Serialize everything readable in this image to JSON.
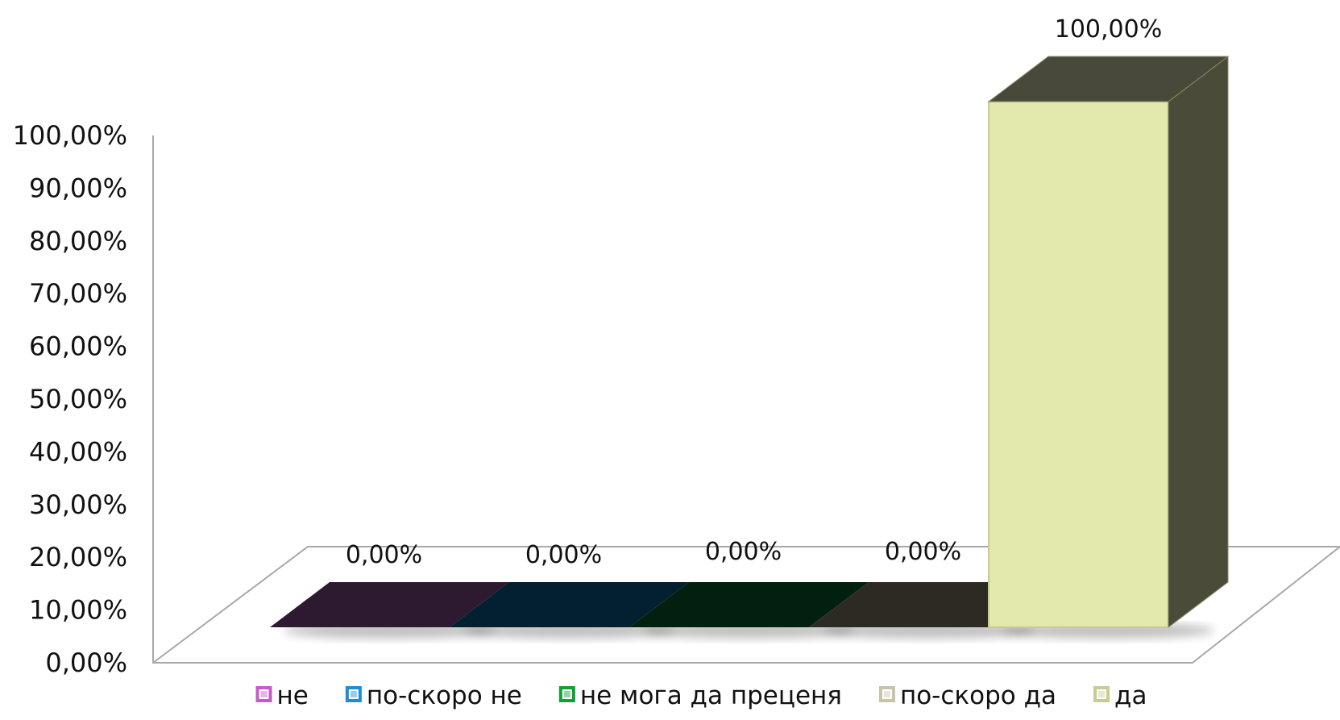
{
  "chart_data": {
    "type": "bar",
    "categories": [
      "не",
      "по-скоро не",
      "не мога да преценя",
      "по-скоро да",
      "да"
    ],
    "values": [
      0,
      0,
      0,
      0,
      100
    ],
    "data_labels": [
      "0,00%",
      "0,00%",
      "0,00%",
      "0,00%",
      "100,00%"
    ],
    "ylim": [
      0,
      100
    ],
    "ytick_labels": [
      "0,00%",
      "10,00%",
      "20,00%",
      "30,00%",
      "40,00%",
      "50,00%",
      "60,00%",
      "70,00%",
      "80,00%",
      "90,00%",
      "100,00%"
    ],
    "legend": {
      "position": "bottom",
      "entries": [
        "не",
        "по-скоро не",
        "не мога да преценя",
        "по-скоро да",
        "да"
      ]
    },
    "style": "3d-column",
    "grid": false,
    "colors": {
      "front": [
        "#C9A0DC",
        "#3AA6D9",
        "#2E8B3C",
        "#D8D2B8",
        "#E3E8AD"
      ],
      "top": [
        "#2E1A30",
        "#02202F",
        "#02200F",
        "#2D2A24",
        "#48493A"
      ],
      "side": [
        "#2E1A30",
        "#02202F",
        "#02200F",
        "#2D2A24",
        "#4B4B39"
      ],
      "legend_swatch": [
        "#C45BC8",
        "#1A8FD6",
        "#11A034",
        "#C8C4A8",
        "#C9CB8F"
      ]
    }
  }
}
